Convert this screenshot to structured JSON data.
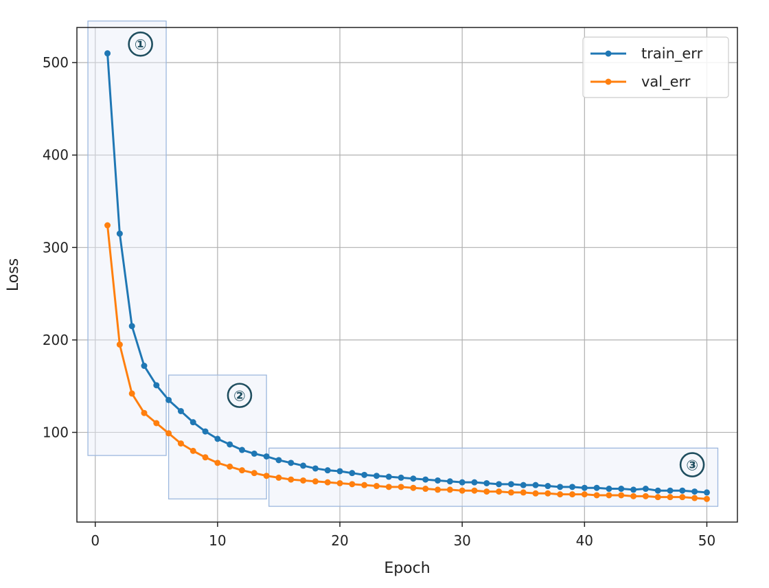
{
  "chart_data": {
    "type": "line",
    "title": "",
    "xlabel": "Epoch",
    "ylabel": "Loss",
    "xlim": [
      -1.5,
      52.5
    ],
    "ylim": [
      3,
      538
    ],
    "xticks": [
      0,
      10,
      20,
      30,
      40,
      50
    ],
    "yticks": [
      100,
      200,
      300,
      400,
      500
    ],
    "grid": true,
    "legend_position": "top-right",
    "x": [
      1,
      2,
      3,
      4,
      5,
      6,
      7,
      8,
      9,
      10,
      11,
      12,
      13,
      14,
      15,
      16,
      17,
      18,
      19,
      20,
      21,
      22,
      23,
      24,
      25,
      26,
      27,
      28,
      29,
      30,
      31,
      32,
      33,
      34,
      35,
      36,
      37,
      38,
      39,
      40,
      41,
      42,
      43,
      44,
      45,
      46,
      47,
      48,
      49,
      50
    ],
    "series": [
      {
        "name": "train_err",
        "color": "#1f77b4",
        "values": [
          510,
          315,
          215,
          172,
          151,
          135,
          123,
          111,
          101,
          93,
          87,
          81,
          77,
          74,
          70,
          67,
          64,
          61,
          59,
          58,
          56,
          54,
          53,
          52,
          51,
          50,
          49,
          48,
          47,
          46,
          46,
          45,
          44,
          44,
          43,
          43,
          42,
          41,
          41,
          40,
          40,
          39,
          39,
          38,
          39,
          37,
          37,
          37,
          36,
          35
        ]
      },
      {
        "name": "val_err",
        "color": "#ff7f0e",
        "values": [
          324,
          195,
          142,
          121,
          110,
          99,
          88,
          80,
          73,
          67,
          63,
          59,
          56,
          53,
          51,
          49,
          48,
          47,
          46,
          45,
          44,
          43,
          42,
          41,
          41,
          40,
          39,
          38,
          38,
          37,
          37,
          36,
          36,
          35,
          35,
          34,
          34,
          33,
          33,
          33,
          32,
          32,
          32,
          31,
          31,
          30,
          30,
          30,
          29,
          28
        ]
      }
    ],
    "annotations": [
      {
        "label": "①",
        "x_range": [
          -0.6,
          5.8
        ],
        "y_range": [
          75,
          545
        ],
        "label_x": 3.7,
        "label_y": 520
      },
      {
        "label": "②",
        "x_range": [
          6.0,
          14.0
        ],
        "y_range": [
          28,
          162
        ],
        "label_x": 11.8,
        "label_y": 140
      },
      {
        "label": "③",
        "x_range": [
          14.2,
          50.9
        ],
        "y_range": [
          20,
          83
        ],
        "label_x": 48.8,
        "label_y": 65
      }
    ]
  }
}
